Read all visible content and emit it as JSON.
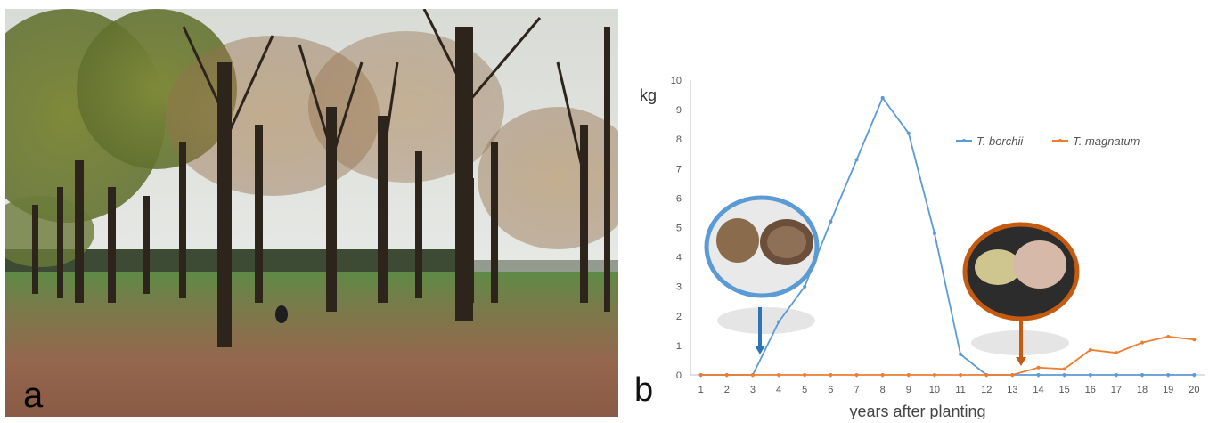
{
  "panels": {
    "left_label": "a",
    "right_label": "b"
  },
  "photo": {
    "description_icon": "orchard-photo",
    "colors": {
      "sky": "#e6e7e6",
      "ground": "#9a6f55",
      "grass": "#5c8a44",
      "trunk": "#2d241c"
    }
  },
  "chart_data": {
    "type": "line",
    "title": "",
    "ylabel": "kg",
    "xlabel": "years after planting",
    "x": [
      1,
      2,
      3,
      4,
      5,
      6,
      7,
      8,
      9,
      10,
      11,
      12,
      13,
      14,
      15,
      16,
      17,
      18,
      19,
      20
    ],
    "xlim": [
      0.6,
      20.4
    ],
    "ylim": [
      0,
      10
    ],
    "yticks": [
      0,
      1,
      2,
      3,
      4,
      5,
      6,
      7,
      8,
      9,
      10
    ],
    "series": [
      {
        "name": "T. borchii",
        "color": "#5b9bd5",
        "values": [
          0,
          0,
          0,
          1.8,
          3.0,
          5.2,
          7.3,
          9.4,
          8.2,
          4.8,
          0.7,
          0,
          0,
          0,
          0,
          0,
          0,
          0,
          0,
          0
        ]
      },
      {
        "name": "T. magnatum",
        "color": "#ed7d31",
        "values": [
          0,
          0,
          0,
          0,
          0,
          0,
          0,
          0,
          0,
          0,
          0,
          0,
          0,
          0.25,
          0.2,
          0.85,
          0.75,
          1.1,
          1.3,
          1.2
        ]
      }
    ],
    "legend": "top-right",
    "grid": false
  },
  "icons": {
    "borchii": "truffle-borchii-photo-icon",
    "magnatum": "truffle-magnatum-photo-icon",
    "arrow_blue": "down-arrow-icon",
    "arrow_orange": "down-arrow-icon"
  }
}
